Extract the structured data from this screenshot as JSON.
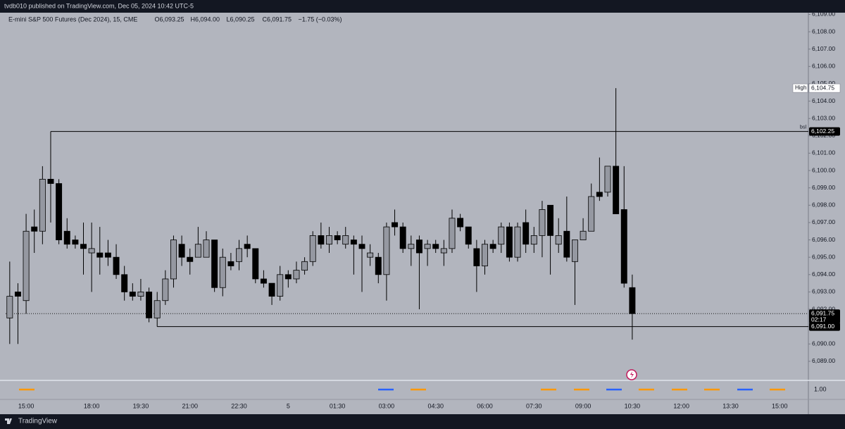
{
  "header": "tvdb010 published on TradingView.com, Dec 05, 2024 10:42 UTC-5",
  "footer": "TradingView",
  "chart_data": {
    "type": "candlestick",
    "title": "E-mini S&P 500 Futures (Dec 2024), 15, CME",
    "ohlc_legend": [
      "O6,093.25",
      "H6,094.00",
      "L6,090.25",
      "C6,091.75",
      "−1.75 (−0.03%)"
    ],
    "categories": [
      null,
      null,
      "15:00",
      null,
      null,
      null,
      null,
      null,
      null,
      null,
      "18:00",
      null,
      null,
      null,
      null,
      null,
      "19:30",
      null,
      null,
      null,
      null,
      null,
      "21:00",
      null,
      null,
      null,
      null,
      null,
      "22:30",
      null,
      null,
      null,
      null,
      null,
      "5",
      null,
      null,
      null,
      null,
      null,
      "01:30",
      null,
      null,
      null,
      null,
      null,
      "03:00",
      null,
      null,
      null,
      null,
      null,
      "04:30",
      null,
      null,
      null,
      null,
      null,
      "06:00",
      null,
      null,
      null,
      null,
      null,
      "07:30",
      null,
      null,
      null,
      null,
      null,
      "09:00",
      null,
      null,
      null,
      null,
      null,
      "10:30",
      null,
      null,
      null,
      null,
      null,
      "12:00",
      null,
      null,
      null,
      null,
      null,
      "13:30",
      null,
      null,
      null,
      null,
      null,
      "15:00",
      null,
      null,
      null
    ],
    "open": [
      6091.5,
      6093,
      6092.5,
      6096.75,
      6096.5,
      6099.5,
      6099.25,
      6096.5,
      6096,
      6095.75,
      6095.25,
      6095.25,
      6095.25,
      6095,
      6094,
      6093,
      6092.75,
      6093,
      6091.5,
      6092.5,
      6093.75,
      6095.75,
      6095,
      6095,
      6095,
      6096,
      6093.25,
      6094.75,
      6094.75,
      6095.75,
      6095.5,
      6093.75,
      6093.5,
      6092.75,
      6094,
      6093.75,
      6094.25,
      6094.75,
      6096.25,
      6095.75,
      6096.25,
      6095.75,
      6096,
      6095.75,
      6095,
      6095,
      6094,
      6097,
      6096.75,
      6095.5,
      6096,
      6095.5,
      6095.75,
      6095.25,
      6095.5,
      6097.25,
      6096.75,
      6095.5,
      6094.5,
      6095.75,
      6095.75,
      6096.75,
      6095,
      6097,
      6095.75,
      6096.25,
      6098,
      6095.75,
      6096.5,
      6094.75,
      6096,
      6096.5,
      6098.75,
      6098.75,
      6100.25,
      6097.75,
      6093.25,
      null,
      null,
      null,
      null,
      null,
      null,
      null,
      null,
      null,
      null,
      null,
      null,
      null,
      null,
      null,
      null,
      null,
      null,
      null,
      null,
      null
    ],
    "high": [
      6094.75,
      6093.5,
      6097.5,
      6097.75,
      6100.25,
      6102.25,
      6099.5,
      6097.25,
      6096.25,
      6097,
      6097,
      6096.75,
      6096,
      6095.75,
      6094.5,
      6093.5,
      6093.75,
      6093.25,
      6093,
      6094.25,
      6096.25,
      6096.25,
      6095.5,
      6096.75,
      6096.5,
      6096,
      6095.5,
      6095.25,
      6096,
      6096.25,
      6095.5,
      6094.25,
      6093.5,
      6094.5,
      6094.25,
      6094.75,
      6095,
      6096.5,
      6097,
      6096.75,
      6096.5,
      6096.75,
      6096.25,
      6096.25,
      6095.75,
      6095.25,
      6097,
      6097.75,
      6097,
      6096.25,
      6096.25,
      6096,
      6096,
      6096,
      6097.75,
      6097.5,
      6096.75,
      6096,
      6096,
      6096,
      6097,
      6097,
      6097,
      6097.75,
      6096.75,
      6098.25,
      6098,
      6097.25,
      6098.5,
      6096,
      6097.25,
      6099.25,
      6100.75,
      6100.25,
      6104.75,
      6100.25,
      6094,
      null,
      null,
      null,
      null,
      null,
      null,
      null,
      null,
      null,
      null,
      null,
      null,
      null,
      null,
      null,
      null,
      null,
      null,
      null,
      null,
      null
    ],
    "low": [
      6090,
      6090,
      6091.75,
      6095.25,
      6095.75,
      6097,
      6095.75,
      6095.5,
      6095.5,
      6094,
      6093,
      6094,
      6094.5,
      6093.75,
      6092.5,
      6092.5,
      6092.5,
      6091.25,
      6091,
      6092.25,
      6093.25,
      6094.5,
      6094,
      6095,
      6095,
      6093,
      6092.75,
      6094.25,
      6094.25,
      6095,
      6093.5,
      6093.25,
      6092.25,
      6092.5,
      6093.25,
      6093.5,
      6094,
      6094.5,
      6095.5,
      6095.25,
      6095.75,
      6095.5,
      6094,
      6093,
      6094.5,
      6093.5,
      6092.5,
      6096.25,
      6095.25,
      6094.5,
      6092,
      6094.5,
      6095.25,
      6094.5,
      6095.25,
      6096.5,
      6095.5,
      6093,
      6094,
      6095.25,
      6095.25,
      6094.75,
      6094.75,
      6095.25,
      6095.25,
      6095,
      6094,
      6095.25,
      6094.75,
      6092.25,
      6096,
      6096.5,
      6098.25,
      6098.5,
      6097.5,
      6093.25,
      6090.25,
      null,
      null,
      null,
      null,
      null,
      null,
      null,
      null,
      null,
      null,
      null,
      null,
      null,
      null,
      null,
      null,
      null,
      null,
      null,
      null,
      null
    ],
    "close": [
      6092.75,
      6092.75,
      6096.5,
      6096.5,
      6099.5,
      6099.25,
      6096,
      6095.75,
      6095.75,
      6095.5,
      6095.5,
      6095,
      6095,
      6094,
      6093,
      6092.75,
      6093,
      6091.5,
      6092.5,
      6093.75,
      6096,
      6095,
      6094.75,
      6095.75,
      6096,
      6093.25,
      6095,
      6094.5,
      6095.5,
      6095.5,
      6093.75,
      6093.5,
      6092.75,
      6094,
      6093.75,
      6094.25,
      6094.75,
      6096.25,
      6095.75,
      6096.25,
      6096,
      6096.25,
      6095.75,
      6095.5,
      6095.25,
      6094,
      6096.75,
      6096.75,
      6095.5,
      6095.75,
      6095.25,
      6095.75,
      6095.5,
      6095.5,
      6097.25,
      6096.75,
      6095.75,
      6094.5,
      6095.75,
      6095.5,
      6096.75,
      6095,
      6096.75,
      6095.75,
      6096.25,
      6097.75,
      6096.25,
      6096.25,
      6095,
      6096,
      6096.5,
      6098.5,
      6098.5,
      6100.25,
      6097.5,
      6093.5,
      6091.75,
      null,
      null,
      null,
      null,
      null,
      null,
      null,
      null,
      null,
      null,
      null,
      null,
      null,
      null,
      null,
      null,
      null,
      null,
      null,
      null,
      null
    ],
    "up_color": "#9598a1",
    "down_color": "#000000",
    "ylim": [
      6087.9,
      6109.1
    ],
    "yticks": [
      {
        "value": 6089,
        "label": "6,089.00"
      },
      {
        "value": 6090,
        "label": "6,090.00"
      },
      {
        "value": 6091,
        "label": "6,091.00"
      },
      {
        "value": 6092,
        "label": "6,092.00"
      },
      {
        "value": 6093,
        "label": "6,093.00"
      },
      {
        "value": 6094,
        "label": "6,094.00"
      },
      {
        "value": 6095,
        "label": "6,095.00"
      },
      {
        "value": 6096,
        "label": "6,096.00"
      },
      {
        "value": 6097,
        "label": "6,097.00"
      },
      {
        "value": 6098,
        "label": "6,098.00"
      },
      {
        "value": 6099,
        "label": "6,099.00"
      },
      {
        "value": 6100,
        "label": "6,100.00"
      },
      {
        "value": 6101,
        "label": "6,101.00"
      },
      {
        "value": 6102,
        "label": "6,102.00"
      },
      {
        "value": 6103,
        "label": "6,103.00"
      },
      {
        "value": 6104,
        "label": "6,104.00"
      },
      {
        "value": 6105,
        "label": "6,105.00"
      },
      {
        "value": 6106,
        "label": "6,106.00"
      },
      {
        "value": 6107,
        "label": "6,107.00"
      },
      {
        "value": 6108,
        "label": "6,108.00"
      },
      {
        "value": 6109,
        "label": "6,109.00"
      }
    ],
    "grid": false,
    "high_marker": {
      "name": "High",
      "value": 6104.75,
      "label": "6,104.75"
    },
    "levels": [
      {
        "name": "bsl",
        "value": 6102.25,
        "label": "6,102.25"
      },
      {
        "value": 6091.0,
        "label": "6,091.00"
      }
    ],
    "last_price": {
      "value": 6091.75,
      "label": "6,091.75",
      "countdown": "02:17"
    },
    "indicator_ticks": [
      {
        "value": 1,
        "label": "1.00"
      }
    ]
  }
}
